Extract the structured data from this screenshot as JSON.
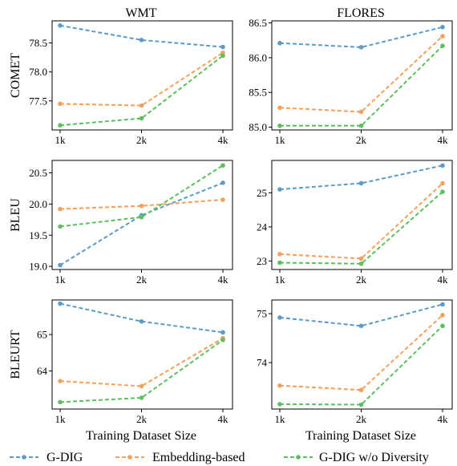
{
  "colors": {
    "g_dig": "#5b9bc9",
    "embedding": "#f5a15b",
    "wo_diversity": "#5dbf5d"
  },
  "legend": [
    "G-DIG",
    "Embedding-based",
    "G-DIG w/o Diversity"
  ],
  "columns": [
    "WMT",
    "FLORES"
  ],
  "rows": [
    "COMET",
    "BLEU",
    "BLEURT"
  ],
  "xlabel": "Training Dataset Size",
  "chart_data": [
    {
      "type": "line",
      "col": "WMT",
      "ylabel": "COMET",
      "categories": [
        "1k",
        "2k",
        "4k"
      ],
      "yticks": [
        77.5,
        78.0,
        78.5
      ],
      "ytick_labels": [
        "77.5",
        "78.0",
        "78.5"
      ],
      "ylim": [
        77.0,
        78.88
      ],
      "series": [
        {
          "name": "G-DIG",
          "values": [
            78.8,
            78.55,
            78.43
          ]
        },
        {
          "name": "Embedding-based",
          "values": [
            77.45,
            77.42,
            78.33
          ]
        },
        {
          "name": "G-DIG w/o Diversity",
          "values": [
            77.08,
            77.2,
            78.28
          ]
        }
      ]
    },
    {
      "type": "line",
      "col": "FLORES",
      "ylabel": "",
      "categories": [
        "1k",
        "2k",
        "4k"
      ],
      "yticks": [
        85.0,
        85.5,
        86.0,
        86.5
      ],
      "ytick_labels": [
        "85.0",
        "85.5",
        "86.0",
        "86.5"
      ],
      "ylim": [
        84.96,
        86.53
      ],
      "series": [
        {
          "name": "G-DIG",
          "values": [
            86.21,
            86.15,
            86.44
          ]
        },
        {
          "name": "Embedding-based",
          "values": [
            85.28,
            85.22,
            86.31
          ]
        },
        {
          "name": "G-DIG w/o Diversity",
          "values": [
            85.02,
            85.02,
            86.17
          ]
        }
      ]
    },
    {
      "type": "line",
      "col": "WMT",
      "ylabel": "BLEU",
      "categories": [
        "1k",
        "2k",
        "4k"
      ],
      "yticks": [
        19.0,
        19.5,
        20.0,
        20.5
      ],
      "ytick_labels": [
        "19.0",
        "19.5",
        "20.0",
        "20.5"
      ],
      "ylim": [
        18.95,
        20.7
      ],
      "series": [
        {
          "name": "G-DIG",
          "values": [
            19.02,
            19.82,
            20.34
          ]
        },
        {
          "name": "Embedding-based",
          "values": [
            19.92,
            19.97,
            20.07
          ]
        },
        {
          "name": "G-DIG w/o Diversity",
          "values": [
            19.64,
            19.79,
            20.62
          ]
        }
      ]
    },
    {
      "type": "line",
      "col": "FLORES",
      "ylabel": "",
      "categories": [
        "1k",
        "2k",
        "4k"
      ],
      "yticks": [
        23,
        24,
        25
      ],
      "ytick_labels": [
        "23",
        "24",
        "25"
      ],
      "ylim": [
        22.75,
        25.95
      ],
      "series": [
        {
          "name": "G-DIG",
          "values": [
            25.1,
            25.28,
            25.8
          ]
        },
        {
          "name": "Embedding-based",
          "values": [
            23.2,
            23.07,
            25.28
          ]
        },
        {
          "name": "G-DIG w/o Diversity",
          "values": [
            22.95,
            22.92,
            25.03
          ]
        }
      ]
    },
    {
      "type": "line",
      "col": "WMT",
      "ylabel": "BLEURT",
      "categories": [
        "1k",
        "2k",
        "4k"
      ],
      "yticks": [
        64,
        65
      ],
      "ytick_labels": [
        "64",
        "65"
      ],
      "ylim": [
        62.95,
        65.95
      ],
      "series": [
        {
          "name": "G-DIG",
          "values": [
            65.85,
            65.36,
            65.06
          ]
        },
        {
          "name": "Embedding-based",
          "values": [
            63.72,
            63.58,
            64.9
          ]
        },
        {
          "name": "G-DIG w/o Diversity",
          "values": [
            63.14,
            63.26,
            64.85
          ]
        }
      ]
    },
    {
      "type": "line",
      "col": "FLORES",
      "ylabel": "",
      "categories": [
        "1k",
        "2k",
        "4k"
      ],
      "yticks": [
        74,
        75
      ],
      "ytick_labels": [
        "74",
        "75"
      ],
      "ylim": [
        73.05,
        75.28
      ],
      "series": [
        {
          "name": "G-DIG",
          "values": [
            74.92,
            74.75,
            75.19
          ]
        },
        {
          "name": "Embedding-based",
          "values": [
            73.53,
            73.44,
            74.97
          ]
        },
        {
          "name": "G-DIG w/o Diversity",
          "values": [
            73.15,
            73.14,
            74.75
          ]
        }
      ]
    }
  ]
}
